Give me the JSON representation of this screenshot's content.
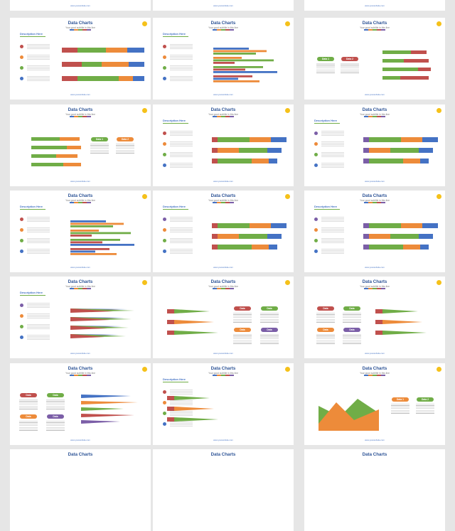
{
  "slide": {
    "title": "Data Charts",
    "subtitle": "Your good subtitle in this line",
    "description": "Description Here",
    "link": "www.yourwebsite.com"
  },
  "pills": {
    "data": "Data",
    "data1": "Data 1",
    "data2": "Data 2"
  },
  "colors": {
    "blue": "#4472c4",
    "orange": "#ed8b3a",
    "green": "#70ad47",
    "red": "#c0504d",
    "purple": "#7b5ea7",
    "yellow": "#f5c11a"
  },
  "icons": {
    "badge": "yellow-circle",
    "bullet": "check-circle-icon"
  }
}
